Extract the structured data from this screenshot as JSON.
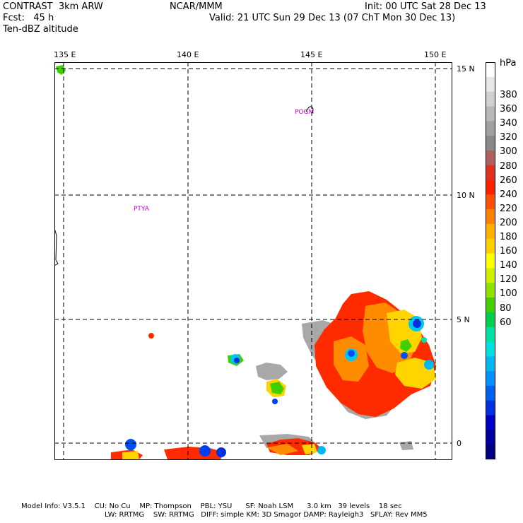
{
  "header": {
    "left_line1": "CONTRAST  3km ARW",
    "left_line2": "Fcst:   45 h",
    "left_line3": "Ten-dBZ altitude",
    "center": "NCAR/MMM",
    "right_line1": "Init: 00 UTC Sat 28 Dec 13",
    "right_line2": "Valid: 21 UTC Sun 29 Dec 13 (07 ChT Mon 30 Dec 13)"
  },
  "map": {
    "lon_labels": [
      "135 E",
      "140 E",
      "145 E",
      "150 E"
    ],
    "lat_labels": [
      "15 N",
      "10 N",
      "5 N",
      "0"
    ],
    "places": [
      "POGM",
      "PTYA"
    ]
  },
  "colorbar": {
    "unit": "hPa",
    "tick_labels": [
      "380",
      "360",
      "340",
      "320",
      "300",
      "280",
      "260",
      "240",
      "220",
      "200",
      "180",
      "160",
      "140",
      "120",
      "100",
      "80",
      "60"
    ],
    "colors": [
      "#ffffff",
      "#e8e8e8",
      "#d0d0d0",
      "#b8b8b8",
      "#a0a0a0",
      "#888888",
      "#b06060",
      "#e03020",
      "#ff2000",
      "#ff5000",
      "#ff8000",
      "#ffb000",
      "#ffd000",
      "#ffff00",
      "#d0f000",
      "#90e000",
      "#40d000",
      "#00d050",
      "#00e0a0",
      "#00e0e0",
      "#00b8f0",
      "#0090ff",
      "#0060f0",
      "#0030e0",
      "#0000c8",
      "#0000a0",
      "#000080"
    ]
  },
  "footer": {
    "line1": "Model Info: V3.5.1    CU: No Cu    MP: Thompson    PBL: YSU      SF: Noah LSM      3.0 km   39 levels    18 sec",
    "line2": "LW: RRTMG    SW: RRTMG   DIFF: simple KM: 3D Smagor DAMP: Rayleigh3   SFLAY: Rev MM5"
  }
}
